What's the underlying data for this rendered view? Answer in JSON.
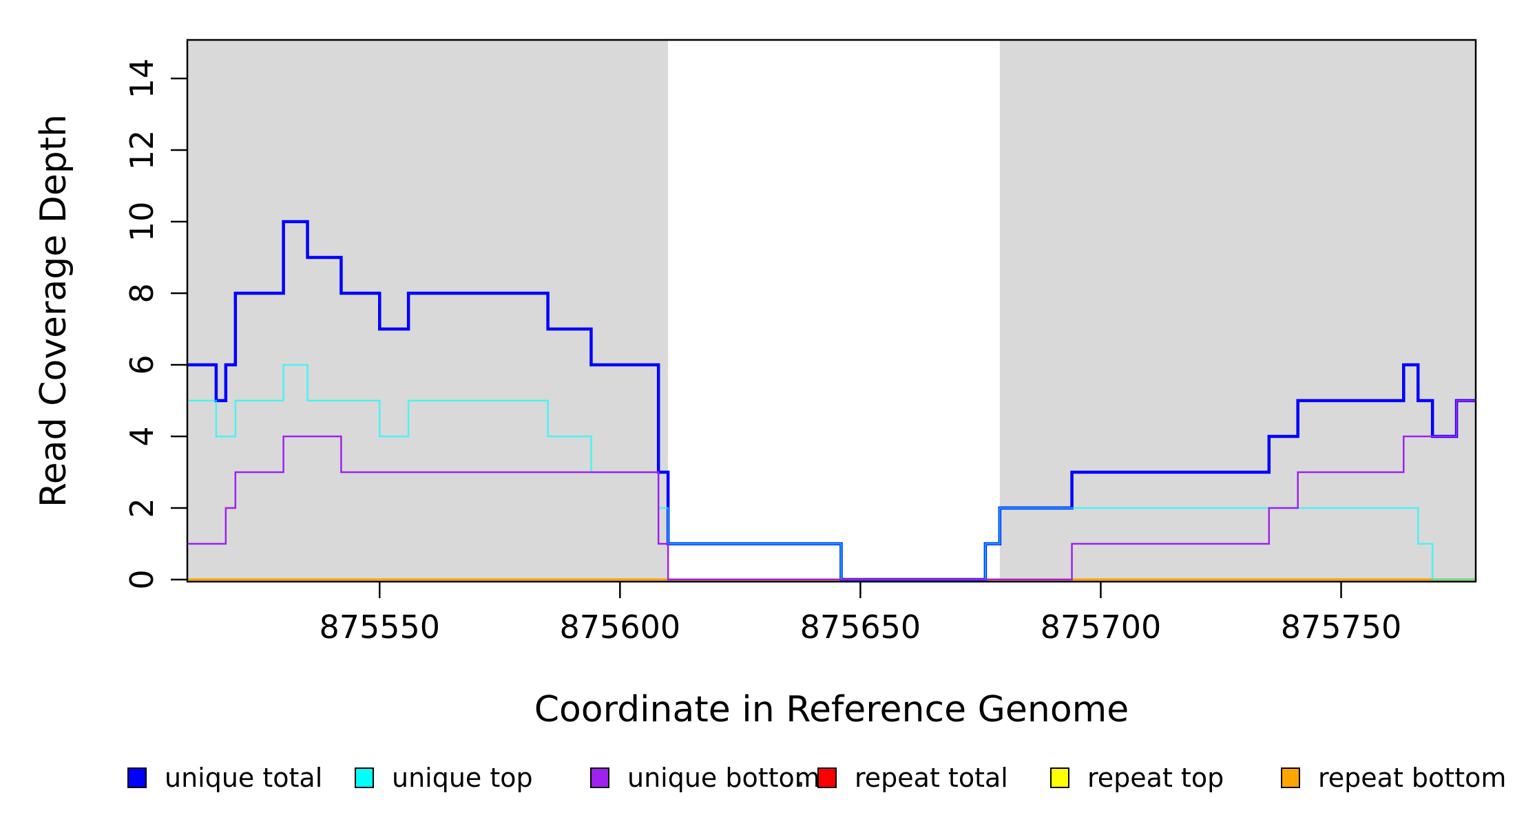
{
  "chart_data": {
    "type": "line",
    "subtype": "step",
    "title": "",
    "xlabel": "Coordinate in Reference Genome",
    "ylabel": "Read Coverage Depth",
    "xlim": [
      875510,
      875778
    ],
    "ylim": [
      0,
      15
    ],
    "x_ticks": [
      875550,
      875600,
      875650,
      875700,
      875750
    ],
    "y_ticks": [
      0,
      2,
      4,
      6,
      8,
      10,
      12,
      14
    ],
    "grid": false,
    "plot_background": "#ffffff",
    "shaded_region_color": "#d9d9d9",
    "background_regions": [
      {
        "x0": 875510,
        "x1": 875610
      },
      {
        "x0": 875679,
        "x1": 875778
      }
    ],
    "x_end": 875778,
    "series": [
      {
        "name": "repeat total",
        "color": "#ff0000",
        "linewidth": 2.5,
        "opacity": 1,
        "points": [
          [
            875510,
            0
          ]
        ]
      },
      {
        "name": "repeat top",
        "color": "#ffff00",
        "linewidth": 2.5,
        "opacity": 1,
        "points": [
          [
            875510,
            0
          ]
        ]
      },
      {
        "name": "repeat bottom",
        "color": "#ffa500",
        "linewidth": 3.5,
        "opacity": 1,
        "points": [
          [
            875510,
            0
          ]
        ]
      },
      {
        "name": "unique total",
        "color": "#0000ff",
        "linewidth": 4.5,
        "opacity": 1,
        "points": [
          [
            875510,
            6
          ],
          [
            875516,
            5
          ],
          [
            875518,
            6
          ],
          [
            875520,
            8
          ],
          [
            875530,
            10
          ],
          [
            875535,
            9
          ],
          [
            875542,
            8
          ],
          [
            875550,
            7
          ],
          [
            875556,
            8
          ],
          [
            875585,
            7
          ],
          [
            875594,
            6
          ],
          [
            875608,
            3
          ],
          [
            875610,
            1
          ],
          [
            875646,
            0
          ],
          [
            875676,
            1
          ],
          [
            875679,
            2
          ],
          [
            875694,
            3
          ],
          [
            875735,
            4
          ],
          [
            875741,
            5
          ],
          [
            875763,
            6
          ],
          [
            875766,
            5
          ],
          [
            875769,
            4
          ],
          [
            875774,
            5
          ]
        ]
      },
      {
        "name": "unique top",
        "color": "#00ffff",
        "linewidth": 2.5,
        "opacity": 0.65,
        "points": [
          [
            875510,
            5
          ],
          [
            875516,
            4
          ],
          [
            875520,
            5
          ],
          [
            875530,
            6
          ],
          [
            875535,
            5
          ],
          [
            875550,
            4
          ],
          [
            875556,
            5
          ],
          [
            875585,
            4
          ],
          [
            875594,
            3
          ],
          [
            875608,
            2
          ],
          [
            875610,
            1
          ],
          [
            875646,
            0
          ],
          [
            875676,
            1
          ],
          [
            875679,
            2
          ],
          [
            875766,
            1
          ],
          [
            875769,
            0
          ]
        ]
      },
      {
        "name": "unique bottom",
        "color": "#a020f0",
        "linewidth": 2.5,
        "opacity": 1,
        "points": [
          [
            875510,
            1
          ],
          [
            875518,
            2
          ],
          [
            875520,
            3
          ],
          [
            875530,
            4
          ],
          [
            875542,
            3
          ],
          [
            875608,
            1
          ],
          [
            875610,
            0
          ],
          [
            875694,
            1
          ],
          [
            875735,
            2
          ],
          [
            875741,
            3
          ],
          [
            875763,
            4
          ],
          [
            875774,
            5
          ]
        ]
      }
    ]
  },
  "legend": {
    "items": [
      {
        "label": "unique total",
        "color": "#0000ff"
      },
      {
        "label": "unique top",
        "color": "#00ffff"
      },
      {
        "label": "unique bottom",
        "color": "#a020f0"
      },
      {
        "label": "repeat total",
        "color": "#ff0000"
      },
      {
        "label": "repeat top",
        "color": "#ffff00"
      },
      {
        "label": "repeat bottom",
        "color": "#ffa500"
      }
    ]
  }
}
